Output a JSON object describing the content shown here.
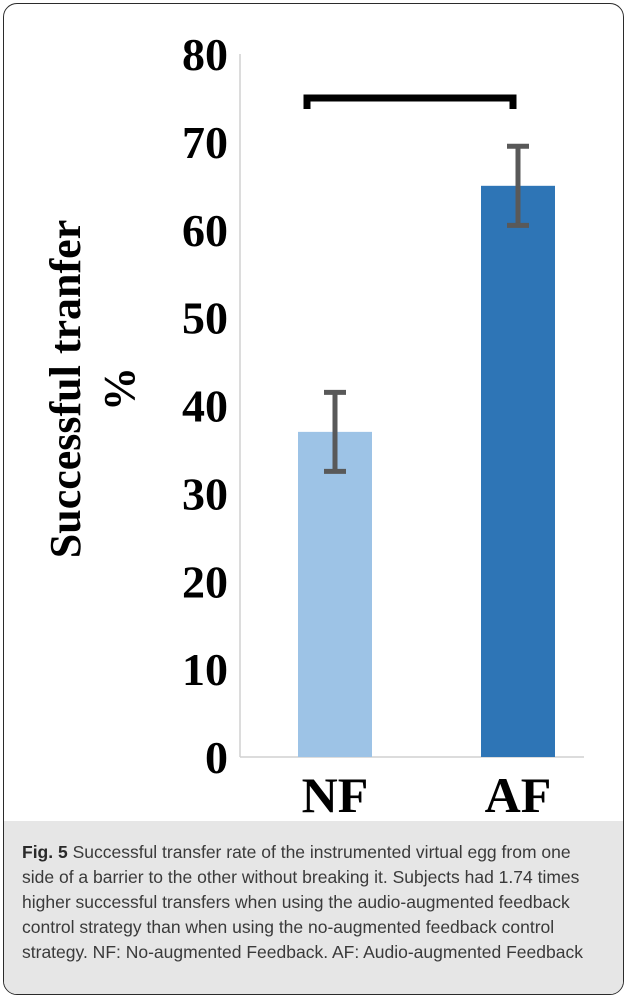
{
  "chart_data": {
    "type": "bar",
    "categories": [
      "NF",
      "AF"
    ],
    "values": [
      37,
      65
    ],
    "error_low": [
      32.5,
      60.5
    ],
    "error_high": [
      41.5,
      69.5
    ],
    "colors": [
      "#9dc3e6",
      "#2e75b6"
    ],
    "error_color": "#595959",
    "ylabel_line1": "Successful tranfer",
    "ylabel_line2": "%",
    "ylim": [
      0,
      80
    ],
    "yticks": [
      "0",
      "10",
      "20",
      "30",
      "40",
      "50",
      "60",
      "70",
      "80"
    ],
    "grid": false,
    "significance_bracket": {
      "from": "NF",
      "to": "AF",
      "y": 75
    }
  },
  "caption": {
    "label": "Fig. 5",
    "text": " Successful transfer rate of the instrumented virtual egg from one side of a barrier to the other without breaking it. Subjects had 1.74 times higher successful transfers when using the audio-augmented feedback control strategy than when using the no-augmented feedback control strategy. NF: No-augmented Feedback. AF: Audio-augmented Feedback"
  }
}
